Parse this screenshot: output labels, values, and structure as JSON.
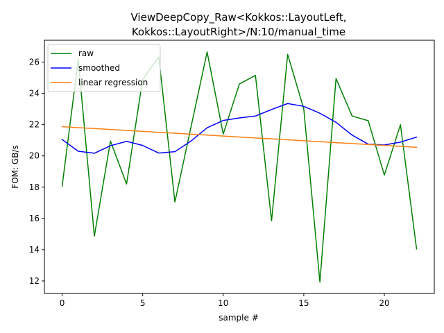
{
  "chart_data": {
    "type": "line",
    "title_lines": [
      "ViewDeepCopy_Raw<Kokkos::LayoutLeft,",
      "Kokkos::LayoutRight>/N:10/manual_time"
    ],
    "xlabel": "sample #",
    "ylabel": "FOM: GB/s",
    "xlim": [
      -1.1,
      23.1
    ],
    "ylim": [
      11.2,
      27.4
    ],
    "xticks": [
      0,
      5,
      10,
      15,
      20
    ],
    "yticks": [
      12,
      14,
      16,
      18,
      20,
      22,
      24,
      26
    ],
    "legend_position": "top-left",
    "x": [
      0,
      1,
      2,
      3,
      4,
      5,
      6,
      7,
      8,
      9,
      10,
      11,
      12,
      13,
      14,
      15,
      16,
      17,
      18,
      19,
      20,
      21,
      22
    ],
    "series": [
      {
        "name": "raw",
        "color": "#008000",
        "values": [
          18.05,
          26.15,
          14.87,
          20.95,
          18.2,
          24.9,
          26.33,
          17.05,
          21.85,
          26.65,
          21.4,
          24.6,
          25.15,
          15.85,
          26.5,
          23.0,
          11.93,
          24.95,
          22.55,
          22.25,
          18.77,
          22.0,
          14.05
        ]
      },
      {
        "name": "smoothed",
        "color": "#0000ff",
        "values": [
          21.05,
          20.3,
          20.17,
          20.65,
          20.93,
          20.67,
          20.18,
          20.27,
          20.95,
          21.8,
          22.27,
          22.43,
          22.55,
          22.97,
          23.35,
          23.17,
          22.73,
          22.15,
          21.33,
          20.75,
          20.7,
          20.88,
          21.2
        ]
      },
      {
        "name": "linear regression",
        "color": "#ff7f0e",
        "values": [
          21.87,
          21.81,
          21.75,
          21.69,
          21.63,
          21.57,
          21.51,
          21.45,
          21.39,
          21.33,
          21.27,
          21.21,
          21.15,
          21.09,
          21.03,
          20.97,
          20.91,
          20.85,
          20.79,
          20.73,
          20.67,
          20.61,
          20.55
        ]
      }
    ]
  }
}
